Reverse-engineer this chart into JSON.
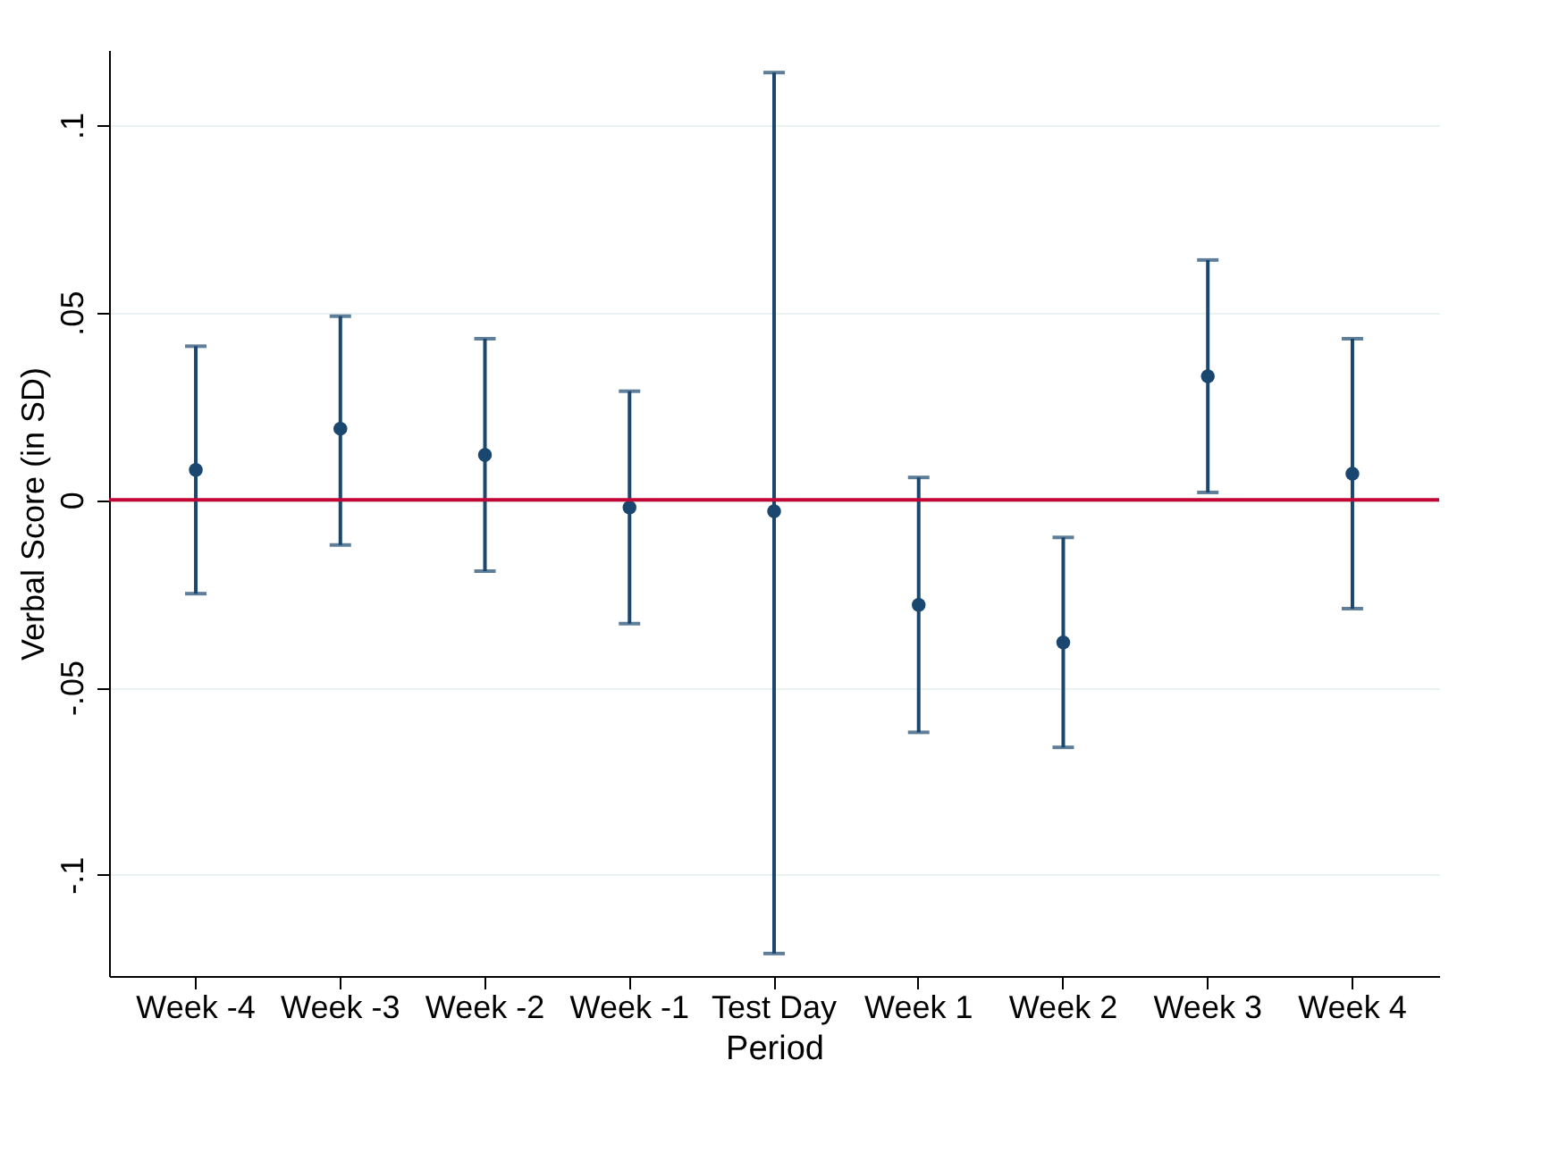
{
  "chart_data": {
    "type": "scatter",
    "xlabel": "Period",
    "ylabel": "Verbal Score (in SD)",
    "categories": [
      "Week -4",
      "Week -3",
      "Week -2",
      "Week -1",
      "Test Day",
      "Week 1",
      "Week 2",
      "Week 3",
      "Week 4"
    ],
    "series": [
      {
        "color": "#1a476f",
        "values": [
          0.008,
          0.019,
          0.012,
          -0.002,
          -0.003,
          -0.028,
          -0.038,
          0.033,
          0.007
        ],
        "errors": [
          [
            -0.025,
            0.041
          ],
          [
            -0.012,
            0.049
          ],
          [
            -0.019,
            0.043
          ],
          [
            -0.033,
            0.029
          ],
          [
            -0.121,
            0.114
          ],
          [
            -0.062,
            0.006
          ],
          [
            -0.066,
            -0.01
          ],
          [
            0.002,
            0.064
          ],
          [
            -0.029,
            0.043
          ]
        ]
      }
    ],
    "ylim": [
      -0.127,
      0.12
    ],
    "yticks": [
      {
        "value": -0.1,
        "label": "-.1"
      },
      {
        "value": -0.05,
        "label": "-.05"
      },
      {
        "value": 0,
        "label": "0"
      },
      {
        "value": 0.05,
        "label": ".05"
      },
      {
        "value": 0.1,
        "label": ".1"
      }
    ],
    "grid": "y",
    "marker": "circle",
    "ref_lines": [
      {
        "axis": "y",
        "value": 0,
        "color": "#c10534"
      }
    ]
  }
}
